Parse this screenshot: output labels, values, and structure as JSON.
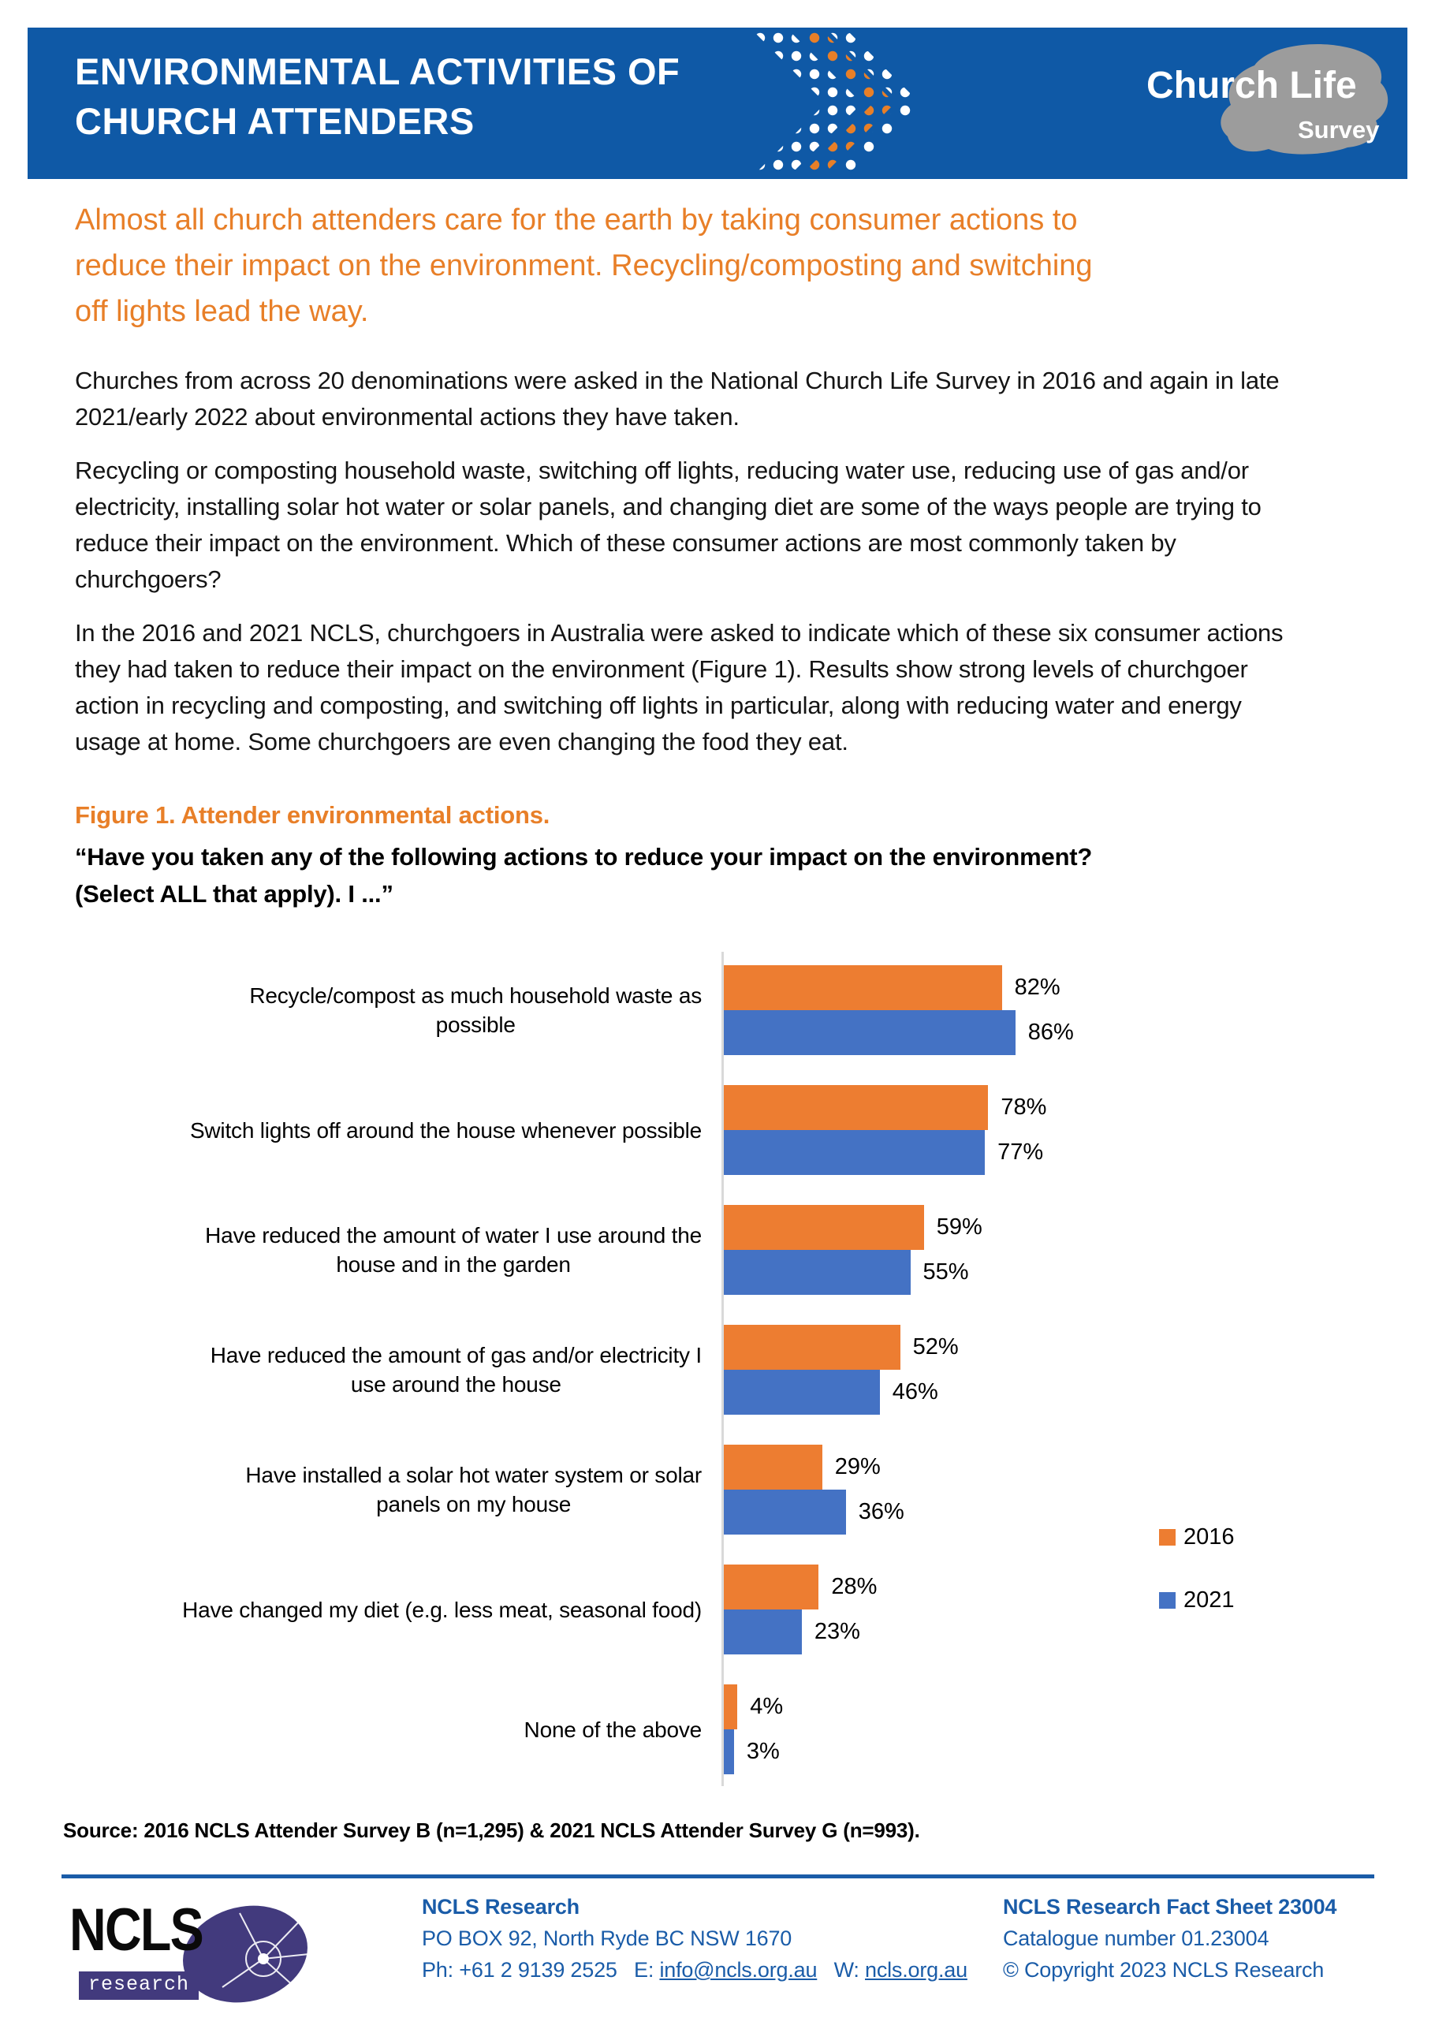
{
  "header": {
    "title_line1": "ENVIRONMENTAL ACTIVITIES OF",
    "title_line2": "CHURCH ATTENDERS",
    "brand": {
      "word1": "Church",
      "word2": "Life",
      "word3": "Survey"
    }
  },
  "headline_lines": [
    "Almost all church attenders care for the earth by taking consumer actions to",
    "reduce their impact on the environment. Recycling/composting and switching",
    "off lights lead the way."
  ],
  "paragraphs": [
    "Churches from across 20 denominations were asked in the National Church Life Survey in 2016 and again in late 2021/early 2022 about environmental actions they have taken.",
    "Recycling or composting household waste, switching off lights, reducing water use, reducing use of gas and/or electricity, installing solar hot water or solar panels, and changing diet are some of the ways people are trying to reduce their impact on the environment. Which of these consumer actions are most commonly taken by churchgoers?",
    "In the 2016 and 2021 NCLS, churchgoers in Australia were asked to indicate which of these six consumer actions they had taken to reduce their impact on the environment (Figure 1). Results show strong levels of churchgoer action in recycling and composting, and switching off lights in particular, along with reducing water and energy usage at home. Some churchgoers are even changing the food they eat."
  ],
  "figure": {
    "title": "Figure 1. Attender environmental actions.",
    "subtitle_line1": "“Have you taken any of the following actions to reduce your impact on the environment?",
    "subtitle_line2": "(Select ALL that apply). I ...”"
  },
  "chart_data": {
    "type": "bar",
    "orientation": "horizontal",
    "title": "Attender environmental actions",
    "categories": [
      "Recycle/compost as much household waste as possible",
      "Switch lights off around the house whenever possible",
      "Have reduced the amount of water I use around the house and in the garden",
      "Have reduced the amount of gas and/or electricity I use around the house",
      "Have installed a solar hot water system or solar panels on my house",
      "Have changed my diet (e.g. less meat, seasonal food)",
      "None of the above"
    ],
    "category_lines": [
      [
        "Recycle/compost as much household waste as",
        "possible"
      ],
      [
        "Switch lights off around the house whenever possible"
      ],
      [
        "Have reduced the amount of water I use around the",
        "house and in the garden"
      ],
      [
        "Have reduced the amount of gas and/or electricity I",
        "use around the house"
      ],
      [
        "Have installed a solar hot water system or solar",
        "panels on my house"
      ],
      [
        "Have changed my diet (e.g. less meat, seasonal food)"
      ],
      [
        "None of the above"
      ]
    ],
    "series": [
      {
        "name": "2016",
        "color": "#ED7D31",
        "values": [
          82,
          78,
          59,
          52,
          29,
          28,
          4
        ]
      },
      {
        "name": "2021",
        "color": "#4472C4",
        "values": [
          86,
          77,
          55,
          46,
          36,
          23,
          3
        ]
      }
    ],
    "value_suffix": "%",
    "xlim": [
      0,
      100
    ],
    "grid": false,
    "legend_position": "right",
    "axis_color": "#D9D9D9"
  },
  "source_note": "Source: 2016 NCLS Attender Survey B (n=1,295) & 2021 NCLS Attender Survey G (n=993).",
  "footer": {
    "logo": {
      "name": "NCLS",
      "sub": "research"
    },
    "org": {
      "name": "NCLS Research",
      "address": "PO BOX 92, North Ryde BC NSW 1670",
      "phone_label": "Ph:",
      "phone": "+61 2 9139 2525",
      "email_label": "E:",
      "email": "info@ncls.org.au",
      "web_label": "W:",
      "web": "ncls.org.au"
    },
    "pub": {
      "line1": "NCLS Research Fact Sheet 23004",
      "line2": "Catalogue number 01.23004",
      "line3": "© Copyright 2023 NCLS Research"
    }
  },
  "colors": {
    "header_bg": "#0F59A6",
    "accent_orange": "#E87F28",
    "footer_blue": "#1A5CA8",
    "series_2016": "#ED7D31",
    "series_2021": "#4472C4",
    "axis_gray": "#D9D9D9",
    "brand_gray": "#9C9C9C",
    "logo_purple": "#423A7D"
  }
}
